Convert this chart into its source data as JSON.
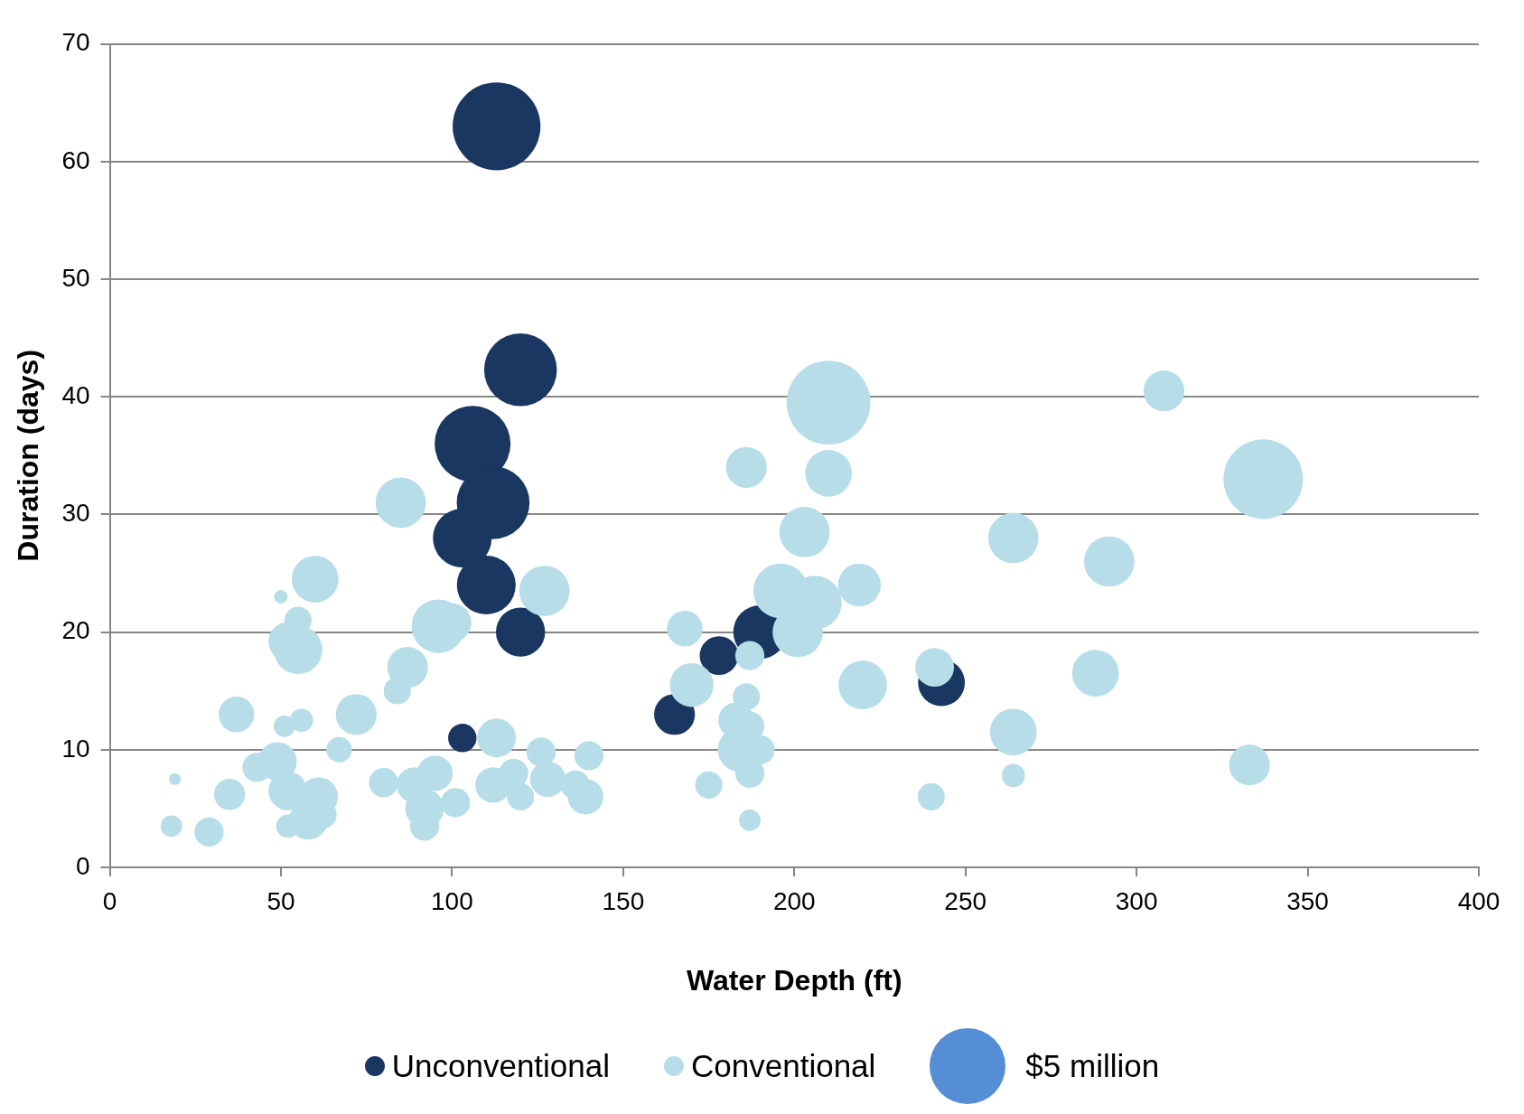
{
  "chart_data": {
    "type": "bubble",
    "xlabel": "Water Depth (ft)",
    "ylabel": "Duration (days)",
    "xlim": [
      0,
      400
    ],
    "xticks": [
      0,
      50,
      100,
      150,
      200,
      250,
      300,
      350,
      400
    ],
    "ylim": [
      0,
      70
    ],
    "yticks": [
      0,
      10,
      20,
      30,
      40,
      50,
      60,
      70
    ],
    "grid": "y",
    "legend": "bottom",
    "size_legend": [
      {
        "value": 5,
        "label": "$5 million"
      }
    ],
    "series": [
      {
        "name": "Unconventional",
        "color": "#193760",
        "x": [
          113,
          120,
          106,
          112,
          103,
          110,
          120,
          103,
          165,
          178,
          190,
          243
        ],
        "values": [
          63,
          42.3,
          36,
          31,
          28,
          24,
          20,
          11,
          13,
          18,
          20,
          15.7
        ],
        "sizes": [
          6.7,
          4.6,
          5,
          4.6,
          3,
          3,
          2.1,
          0.7,
          1.45,
          1.3,
          2.5,
          1.9
        ]
      },
      {
        "name": "Conventional",
        "color": "#b7dde8",
        "x": [
          210,
          308,
          337,
          186,
          210,
          203,
          264,
          292,
          219,
          196,
          206,
          201,
          168,
          187,
          170,
          220,
          241,
          288,
          186,
          183,
          187,
          184,
          190,
          187,
          175,
          187,
          240,
          264,
          264,
          333,
          85,
          60,
          55,
          52,
          50,
          55,
          96,
          100,
          127,
          87,
          84,
          72,
          37,
          56,
          51,
          67,
          113,
          126,
          140,
          19,
          18,
          29,
          35,
          43,
          49,
          52,
          58,
          61,
          62,
          52,
          80,
          89,
          95,
          92,
          92,
          101,
          112,
          118,
          120,
          128,
          136,
          139
        ],
        "values": [
          39.5,
          40.5,
          33,
          34,
          33.5,
          28.5,
          28,
          26,
          24,
          23.5,
          22.5,
          20,
          20.3,
          18,
          15.5,
          15.5,
          17,
          16.5,
          14.5,
          12.5,
          12,
          10,
          10,
          8,
          7,
          4,
          6,
          11.5,
          7.8,
          8.7,
          31,
          24.5,
          18.5,
          19.2,
          23,
          21,
          20.5,
          20.8,
          23.5,
          17,
          15,
          13,
          13,
          12.5,
          12,
          10,
          11,
          9.8,
          9.5,
          7.5,
          3.5,
          3,
          6.2,
          8.5,
          9,
          6.5,
          4,
          6,
          4.5,
          3.5,
          7.2,
          7,
          8,
          5,
          3.5,
          5.5,
          7,
          8,
          6,
          7.5,
          7,
          6
        ],
        "sizes": [
          6.1,
          1.45,
          5.5,
          1.45,
          1.9,
          2.2,
          2.2,
          2.2,
          1.6,
          2.6,
          2.5,
          2.2,
          1.1,
          0.74,
          1.66,
          2.05,
          1.3,
          1.9,
          0.64,
          1.1,
          0.74,
          1.66,
          0.74,
          0.74,
          0.64,
          0.4,
          0.64,
          1.9,
          0.47,
          1.45,
          2.2,
          1.9,
          2.05,
          1.3,
          0.16,
          0.64,
          2.5,
          1.3,
          2.2,
          1.45,
          0.64,
          1.45,
          1.1,
          0.47,
          0.4,
          0.56,
          1.3,
          0.74,
          0.74,
          0.12,
          0.4,
          0.74,
          0.84,
          0.74,
          1.3,
          1.3,
          1.3,
          1.3,
          0.74,
          0.47,
          0.74,
          1.1,
          1.1,
          1.3,
          0.74,
          0.74,
          1.1,
          0.74,
          0.64,
          1.1,
          0.74,
          1.1
        ]
      }
    ]
  }
}
